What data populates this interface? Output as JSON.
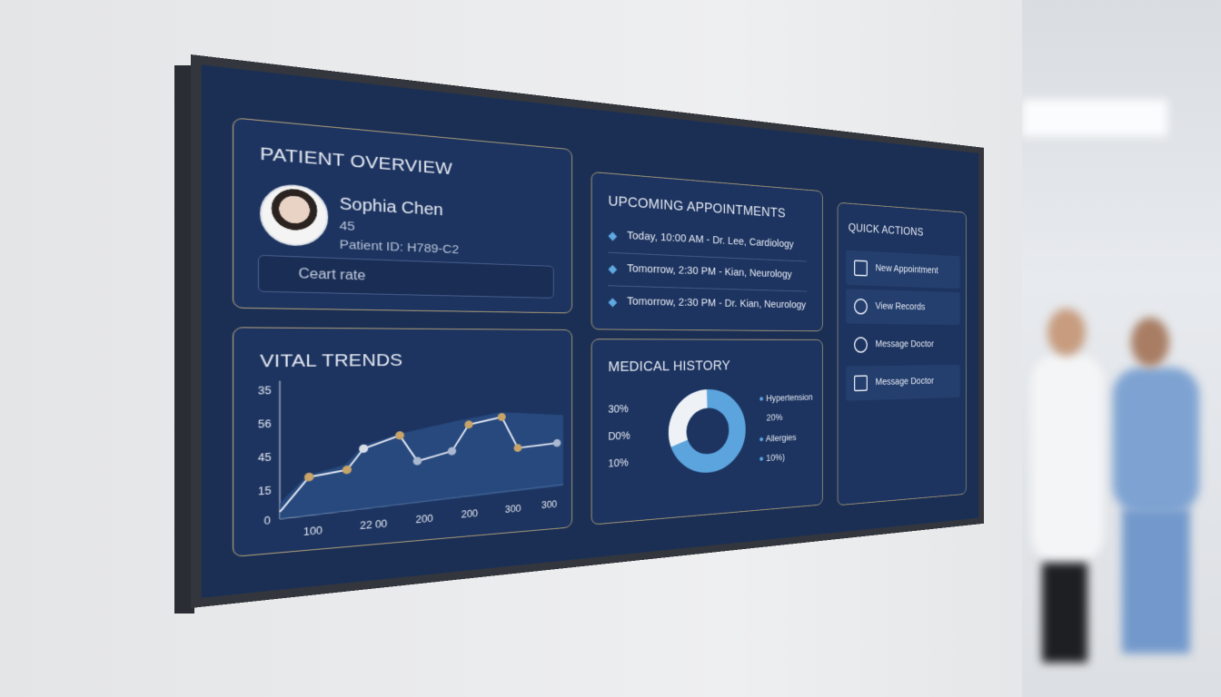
{
  "patient_overview": {
    "title": "PATIENT OVERVIEW",
    "name": "Sophia Chen",
    "age": "45",
    "patient_id": "Patient ID: H789-C2",
    "field": "Ceart rate"
  },
  "vital_trends": {
    "title": "VITAL TRENDS",
    "y_labels": [
      "35",
      "56",
      "45",
      "15",
      "0"
    ],
    "x_labels": [
      "100",
      "22 00",
      "200",
      "200",
      "300",
      "300"
    ]
  },
  "upcoming_appointments": {
    "title": "UPCOMING APPOINTMENTS",
    "items": [
      "Today, 10:00 AM - Dr. Lee, Cardiology",
      "Tomorrow, 2:30 PM - Kian, Neurology",
      "Tomorrow, 2:30 PM - Dr. Kian, Neurology"
    ]
  },
  "medical_history": {
    "title": "MEDICAL HISTORY",
    "left_labels": [
      "30%",
      "D0%",
      "10%"
    ],
    "right_labels": [
      "Hypertension",
      "20%",
      "Allergies",
      "10%)"
    ]
  },
  "quick_actions": {
    "title": "QUICK ACTIONS",
    "items": [
      "New Appointment",
      "View Records",
      "Message Doctor",
      "Message Doctor"
    ]
  }
}
